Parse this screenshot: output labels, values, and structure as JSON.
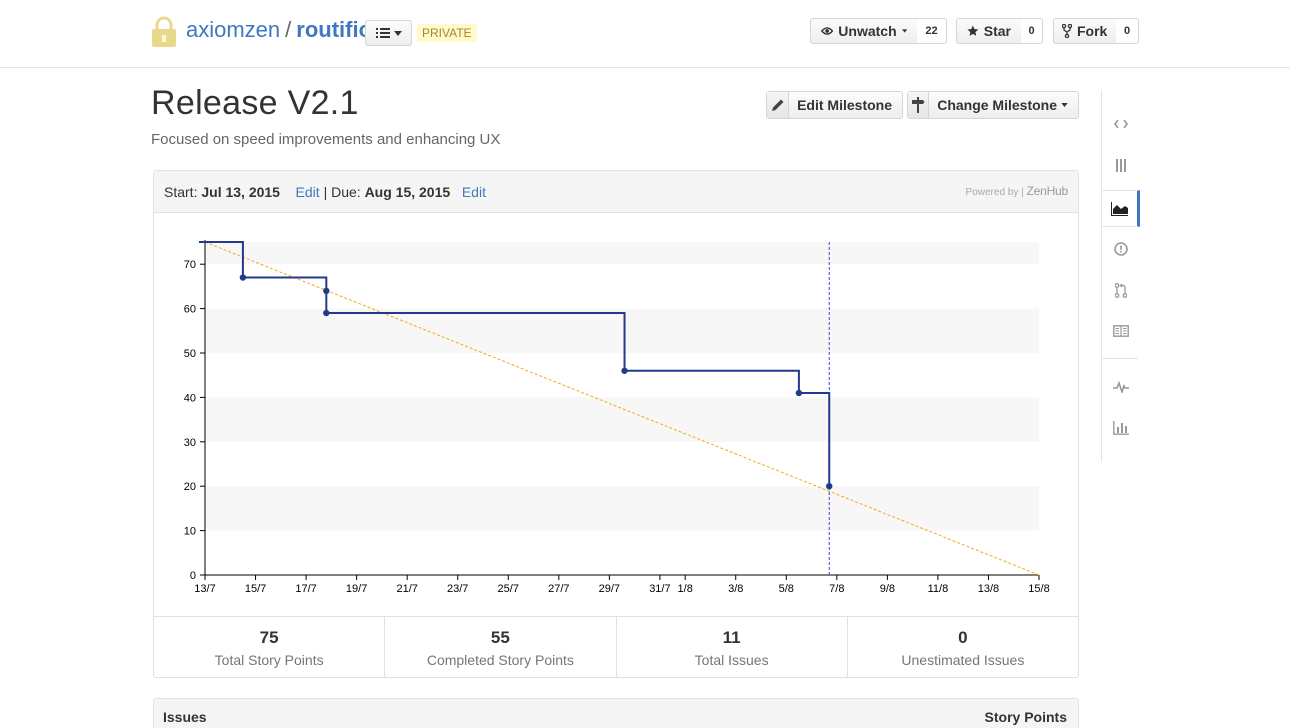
{
  "header": {
    "owner": "axiomzen",
    "separator": "/",
    "repo": "routific",
    "visibility_badge": "PRIVATE",
    "watch": {
      "label": "Unwatch",
      "count": "22"
    },
    "star": {
      "label": "Star",
      "count": "0"
    },
    "fork": {
      "label": "Fork",
      "count": "0"
    }
  },
  "milestone": {
    "title": "Release V2.1",
    "description": "Focused on speed improvements and enhancing UX",
    "edit_button": "Edit Milestone",
    "change_button": "Change Milestone"
  },
  "panel": {
    "start_label": "Start:",
    "start_date": "Jul 13, 2015",
    "edit_start": "Edit",
    "pipe": "|",
    "due_label": "Due:",
    "due_date": "Aug 15, 2015",
    "edit_due": "Edit",
    "powered_by": "Powered by |",
    "powered_brand": "ZenHub"
  },
  "stats": [
    {
      "value": "75",
      "label": "Total Story Points"
    },
    {
      "value": "55",
      "label": "Completed Story Points"
    },
    {
      "value": "11",
      "label": "Total Issues"
    },
    {
      "value": "0",
      "label": "Unestimated Issues"
    }
  ],
  "issues_table": {
    "col_issues": "Issues",
    "col_points": "Story Points"
  },
  "right_nav": [
    "code-icon",
    "projects-icon",
    "milestones-icon",
    "issues-icon",
    "pull-requests-icon",
    "wiki-icon",
    "pulse-icon",
    "graphs-icon"
  ],
  "colors": {
    "accent": "#4078c0",
    "burndown_line": "#233a8b",
    "ideal_line": "#f5a623"
  },
  "chart_data": {
    "type": "line",
    "ylim": [
      0,
      75
    ],
    "yticks": [
      0,
      10,
      20,
      30,
      40,
      50,
      60,
      70
    ],
    "xlim_day": [
      0,
      33
    ],
    "xticks": [
      {
        "day": 0,
        "label": "13/7"
      },
      {
        "day": 2,
        "label": "15/7"
      },
      {
        "day": 4,
        "label": "17/7"
      },
      {
        "day": 6,
        "label": "19/7"
      },
      {
        "day": 8,
        "label": "21/7"
      },
      {
        "day": 10,
        "label": "23/7"
      },
      {
        "day": 12,
        "label": "25/7"
      },
      {
        "day": 14,
        "label": "27/7"
      },
      {
        "day": 16,
        "label": "29/7"
      },
      {
        "day": 18,
        "label": "31/7"
      },
      {
        "day": 19,
        "label": "1/8"
      },
      {
        "day": 21,
        "label": "3/8"
      },
      {
        "day": 23,
        "label": "5/8"
      },
      {
        "day": 25,
        "label": "7/8"
      },
      {
        "day": 27,
        "label": "9/8"
      },
      {
        "day": 29,
        "label": "11/8"
      },
      {
        "day": 31,
        "label": "13/8"
      },
      {
        "day": 33,
        "label": "15/8"
      }
    ],
    "series": [
      {
        "type": "step",
        "points": [
          {
            "day": 0,
            "y": 75
          },
          {
            "day": 1.5,
            "y": 67
          },
          {
            "day": 4.8,
            "y": 64
          },
          {
            "day": 4.8,
            "y": 59
          },
          {
            "day": 16.6,
            "y": 46
          },
          {
            "day": 23.5,
            "y": 41
          },
          {
            "day": 24.7,
            "y": 20
          }
        ]
      },
      {
        "type": "ideal",
        "points": [
          {
            "day": 0,
            "y": 75
          },
          {
            "day": 33,
            "y": 0
          }
        ]
      }
    ],
    "today_day": 24.7,
    "grid": "alternating-bands"
  }
}
